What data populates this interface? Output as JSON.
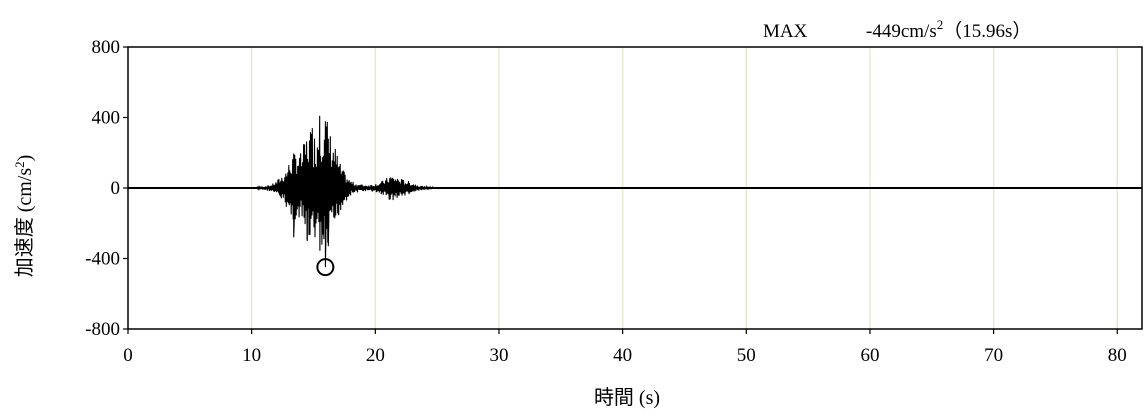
{
  "chart_data": {
    "type": "line",
    "title": "",
    "xlabel": "時間 (s)",
    "ylabel_main": "加速度 (cm/s",
    "ylabel_sup": "2",
    "ylabel_end": ")",
    "xlim": [
      0,
      82
    ],
    "ylim": [
      -800,
      800
    ],
    "x_ticks": [
      0,
      10,
      20,
      30,
      40,
      50,
      60,
      70,
      80
    ],
    "y_ticks": [
      800,
      400,
      0,
      -400,
      -800
    ],
    "grid": {
      "vertical": true,
      "horizontal": false,
      "color": "#e8e8d0"
    },
    "line_color": "#000000",
    "max_annotation": {
      "label": "MAX",
      "value_text": "-449cm/s",
      "sup": "2",
      "time_text": "（15.96s）",
      "time": 15.96,
      "value": -449
    },
    "series": [
      {
        "envelope": [
          [
            10.4,
            6
          ],
          [
            11.0,
            12
          ],
          [
            11.6,
            20
          ],
          [
            12.0,
            40
          ],
          [
            12.4,
            70
          ],
          [
            12.8,
            110
          ],
          [
            13.2,
            180
          ],
          [
            13.6,
            220
          ],
          [
            14.0,
            200
          ],
          [
            14.4,
            300
          ],
          [
            14.8,
            350
          ],
          [
            15.2,
            300
          ],
          [
            15.5,
            410
          ],
          [
            15.96,
            449
          ],
          [
            16.3,
            330
          ],
          [
            16.7,
            250
          ],
          [
            17.1,
            150
          ],
          [
            17.5,
            90
          ],
          [
            17.9,
            50
          ],
          [
            18.3,
            30
          ],
          [
            18.8,
            22
          ],
          [
            19.3,
            18
          ],
          [
            19.8,
            22
          ],
          [
            20.3,
            30
          ],
          [
            20.8,
            50
          ],
          [
            21.2,
            75
          ],
          [
            21.7,
            65
          ],
          [
            22.2,
            50
          ],
          [
            22.7,
            40
          ],
          [
            23.2,
            25
          ],
          [
            23.7,
            14
          ],
          [
            24.2,
            6
          ],
          [
            24.6,
            3
          ]
        ],
        "marked_points": [
          [
            15.5,
            410
          ],
          [
            15.96,
            -449
          ],
          [
            13.4,
            -280
          ],
          [
            14.5,
            -300
          ],
          [
            14.9,
            340
          ],
          [
            16.2,
            -330
          ]
        ]
      }
    ]
  }
}
